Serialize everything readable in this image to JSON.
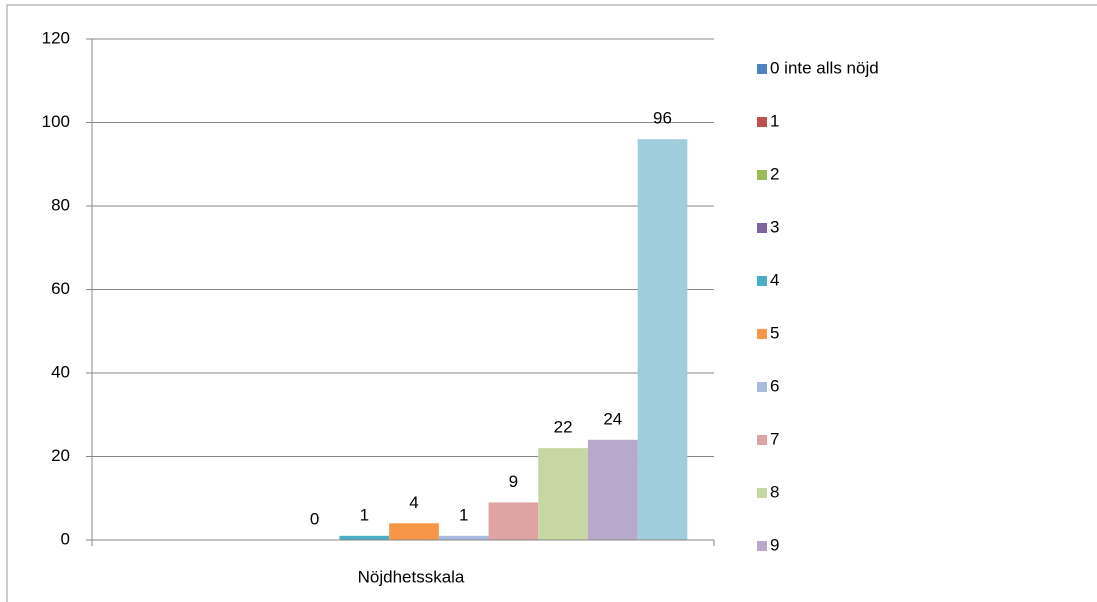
{
  "chart_data": {
    "type": "bar",
    "categories": [
      "Nöjdhetsskala"
    ],
    "series": [
      {
        "name": "0 inte alls nöjd",
        "color": "#4f81bd",
        "values": [
          null
        ]
      },
      {
        "name": "1",
        "color": "#c0504d",
        "values": [
          null
        ]
      },
      {
        "name": "2",
        "color": "#9bbb59",
        "values": [
          null
        ]
      },
      {
        "name": "3",
        "color": "#8064a2",
        "values": [
          0
        ]
      },
      {
        "name": "4",
        "color": "#4bacc6",
        "values": [
          1
        ]
      },
      {
        "name": "5",
        "color": "#f79646",
        "values": [
          4
        ]
      },
      {
        "name": "6",
        "color": "#a9bbdf",
        "values": [
          1
        ]
      },
      {
        "name": "7",
        "color": "#dea3a2",
        "values": [
          9
        ]
      },
      {
        "name": "8",
        "color": "#c6d7a3",
        "values": [
          22
        ]
      },
      {
        "name": "9",
        "color": "#b8a9ca",
        "values": [
          24
        ]
      },
      {
        "name": null,
        "color": "#a0cddb",
        "values": [
          96
        ]
      }
    ],
    "ylim": [
      0,
      120
    ],
    "yticks": [
      0,
      20,
      40,
      60,
      80,
      100,
      120
    ],
    "grid": true,
    "legend": "right"
  }
}
